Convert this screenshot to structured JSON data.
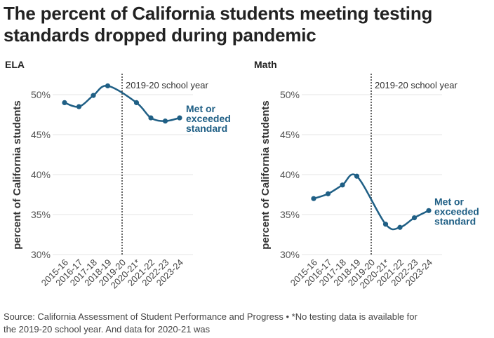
{
  "header": {
    "title_line1": "The percent of California students meeting testing",
    "title_line2": "standards dropped during pandemic"
  },
  "chart_data": [
    {
      "type": "line",
      "title": "ELA",
      "ylabel": "percent of California students",
      "categories": [
        "2015-16",
        "2016-17",
        "2017-18",
        "2018-19",
        "2019-20",
        "2020-21*",
        "2021-22",
        "2022-23",
        "2023-24"
      ],
      "ylim": [
        30,
        52
      ],
      "yticks": [
        30,
        35,
        40,
        45,
        50
      ],
      "yticklabels": [
        "30%",
        "35%",
        "40%",
        "45%",
        "50%"
      ],
      "series": [
        {
          "name": "Met or exceeded standard",
          "values": [
            49.0,
            48.5,
            49.9,
            51.1,
            null,
            49.0,
            47.1,
            46.7,
            47.1
          ]
        }
      ],
      "annotation": "2019-20 school year",
      "color": "#1f5f85"
    },
    {
      "type": "line",
      "title": "Math",
      "ylabel": "percent of California students",
      "categories": [
        "2015-16",
        "2016-17",
        "2017-18",
        "2018-19",
        "2019-20",
        "2020-21*",
        "2021-22",
        "2022-23",
        "2023-24"
      ],
      "ylim": [
        30,
        52
      ],
      "yticks": [
        30,
        35,
        40,
        45,
        50
      ],
      "yticklabels": [
        "30%",
        "35%",
        "40%",
        "45%",
        "50%"
      ],
      "series": [
        {
          "name": "Met or exceeded standard",
          "values": [
            37.0,
            37.6,
            38.7,
            39.8,
            null,
            33.8,
            33.4,
            34.6,
            35.5
          ]
        }
      ],
      "annotation": "2019-20 school year",
      "color": "#1f5f85"
    }
  ],
  "footer": {
    "source_line1": "Source: California Assessment of Student Performance and Progress • *No testing data is available for",
    "source_line2": "the 2019-20 school year. And data for 2020-21 was"
  }
}
